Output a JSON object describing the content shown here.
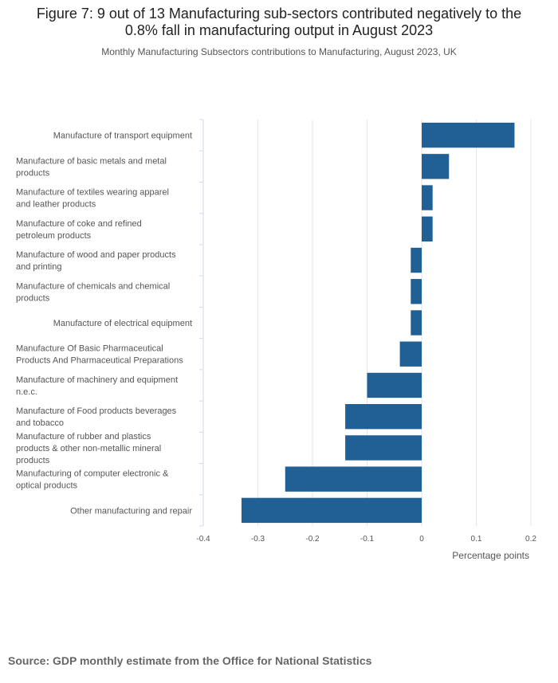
{
  "chart_data": {
    "type": "bar",
    "orientation": "horizontal",
    "title": "Figure 7: 9 out of 13 Manufacturing sub-sectors contributed negatively to the 0.8% fall in manufacturing output in August 2023",
    "subtitle": "Monthly Manufacturing Subsectors contributions to Manufacturing, August 2023, UK",
    "xlabel": "Percentage points",
    "ylabel": "",
    "xlim": [
      -0.4,
      0.2
    ],
    "xticks": [
      -0.4,
      -0.3,
      -0.2,
      -0.1,
      0,
      0.1,
      0.2
    ],
    "xtick_labels": [
      "-0.4",
      "-0.3",
      "-0.2",
      "-0.1",
      "0",
      "0.1",
      "0.2"
    ],
    "grid": true,
    "bar_color": "#206095",
    "categories": [
      "Manufacture of transport equipment",
      "Manufacture of basic metals and metal products",
      "Manufacture of textiles wearing apparel and leather products",
      "Manufacture of coke and refined petroleum products",
      "Manufacture of wood and paper products and printing",
      "Manufacture of chemicals and chemical products",
      "Manufacture of electrical equipment",
      "Manufacture Of Basic Pharmaceutical Products And Pharmaceutical Preparations",
      "Manufacture of machinery and equipment n.e.c.",
      "Manufacture of Food products beverages and tobacco",
      "Manufacture of rubber and plastics products & other non-metallic mineral products",
      "Manufacturing of computer electronic & optical products",
      "Other manufacturing and repair"
    ],
    "category_lines": [
      [
        "Manufacture of transport equipment"
      ],
      [
        "Manufacture of basic metals and metal",
        "products"
      ],
      [
        "Manufacture of textiles wearing apparel",
        "and leather products"
      ],
      [
        "Manufacture of coke and refined",
        "petroleum products"
      ],
      [
        "Manufacture of wood and paper products",
        "and printing"
      ],
      [
        "Manufacture of chemicals and chemical",
        "products"
      ],
      [
        "Manufacture of electrical equipment"
      ],
      [
        "Manufacture Of Basic Pharmaceutical",
        "Products And Pharmaceutical Preparations"
      ],
      [
        "Manufacture of machinery and equipment",
        "n.e.c."
      ],
      [
        "Manufacture of Food products beverages",
        "and tobacco"
      ],
      [
        "Manufacture of rubber and plastics",
        "products & other non-metallic mineral",
        "products"
      ],
      [
        "Manufacturing of computer electronic &",
        "optical products"
      ],
      [
        "Other manufacturing and repair"
      ]
    ],
    "values": [
      0.17,
      0.05,
      0.02,
      0.02,
      -0.02,
      -0.02,
      -0.02,
      -0.04,
      -0.1,
      -0.14,
      -0.14,
      -0.25,
      -0.33
    ]
  },
  "source": "Source: GDP monthly estimate from the Office for National Statistics"
}
